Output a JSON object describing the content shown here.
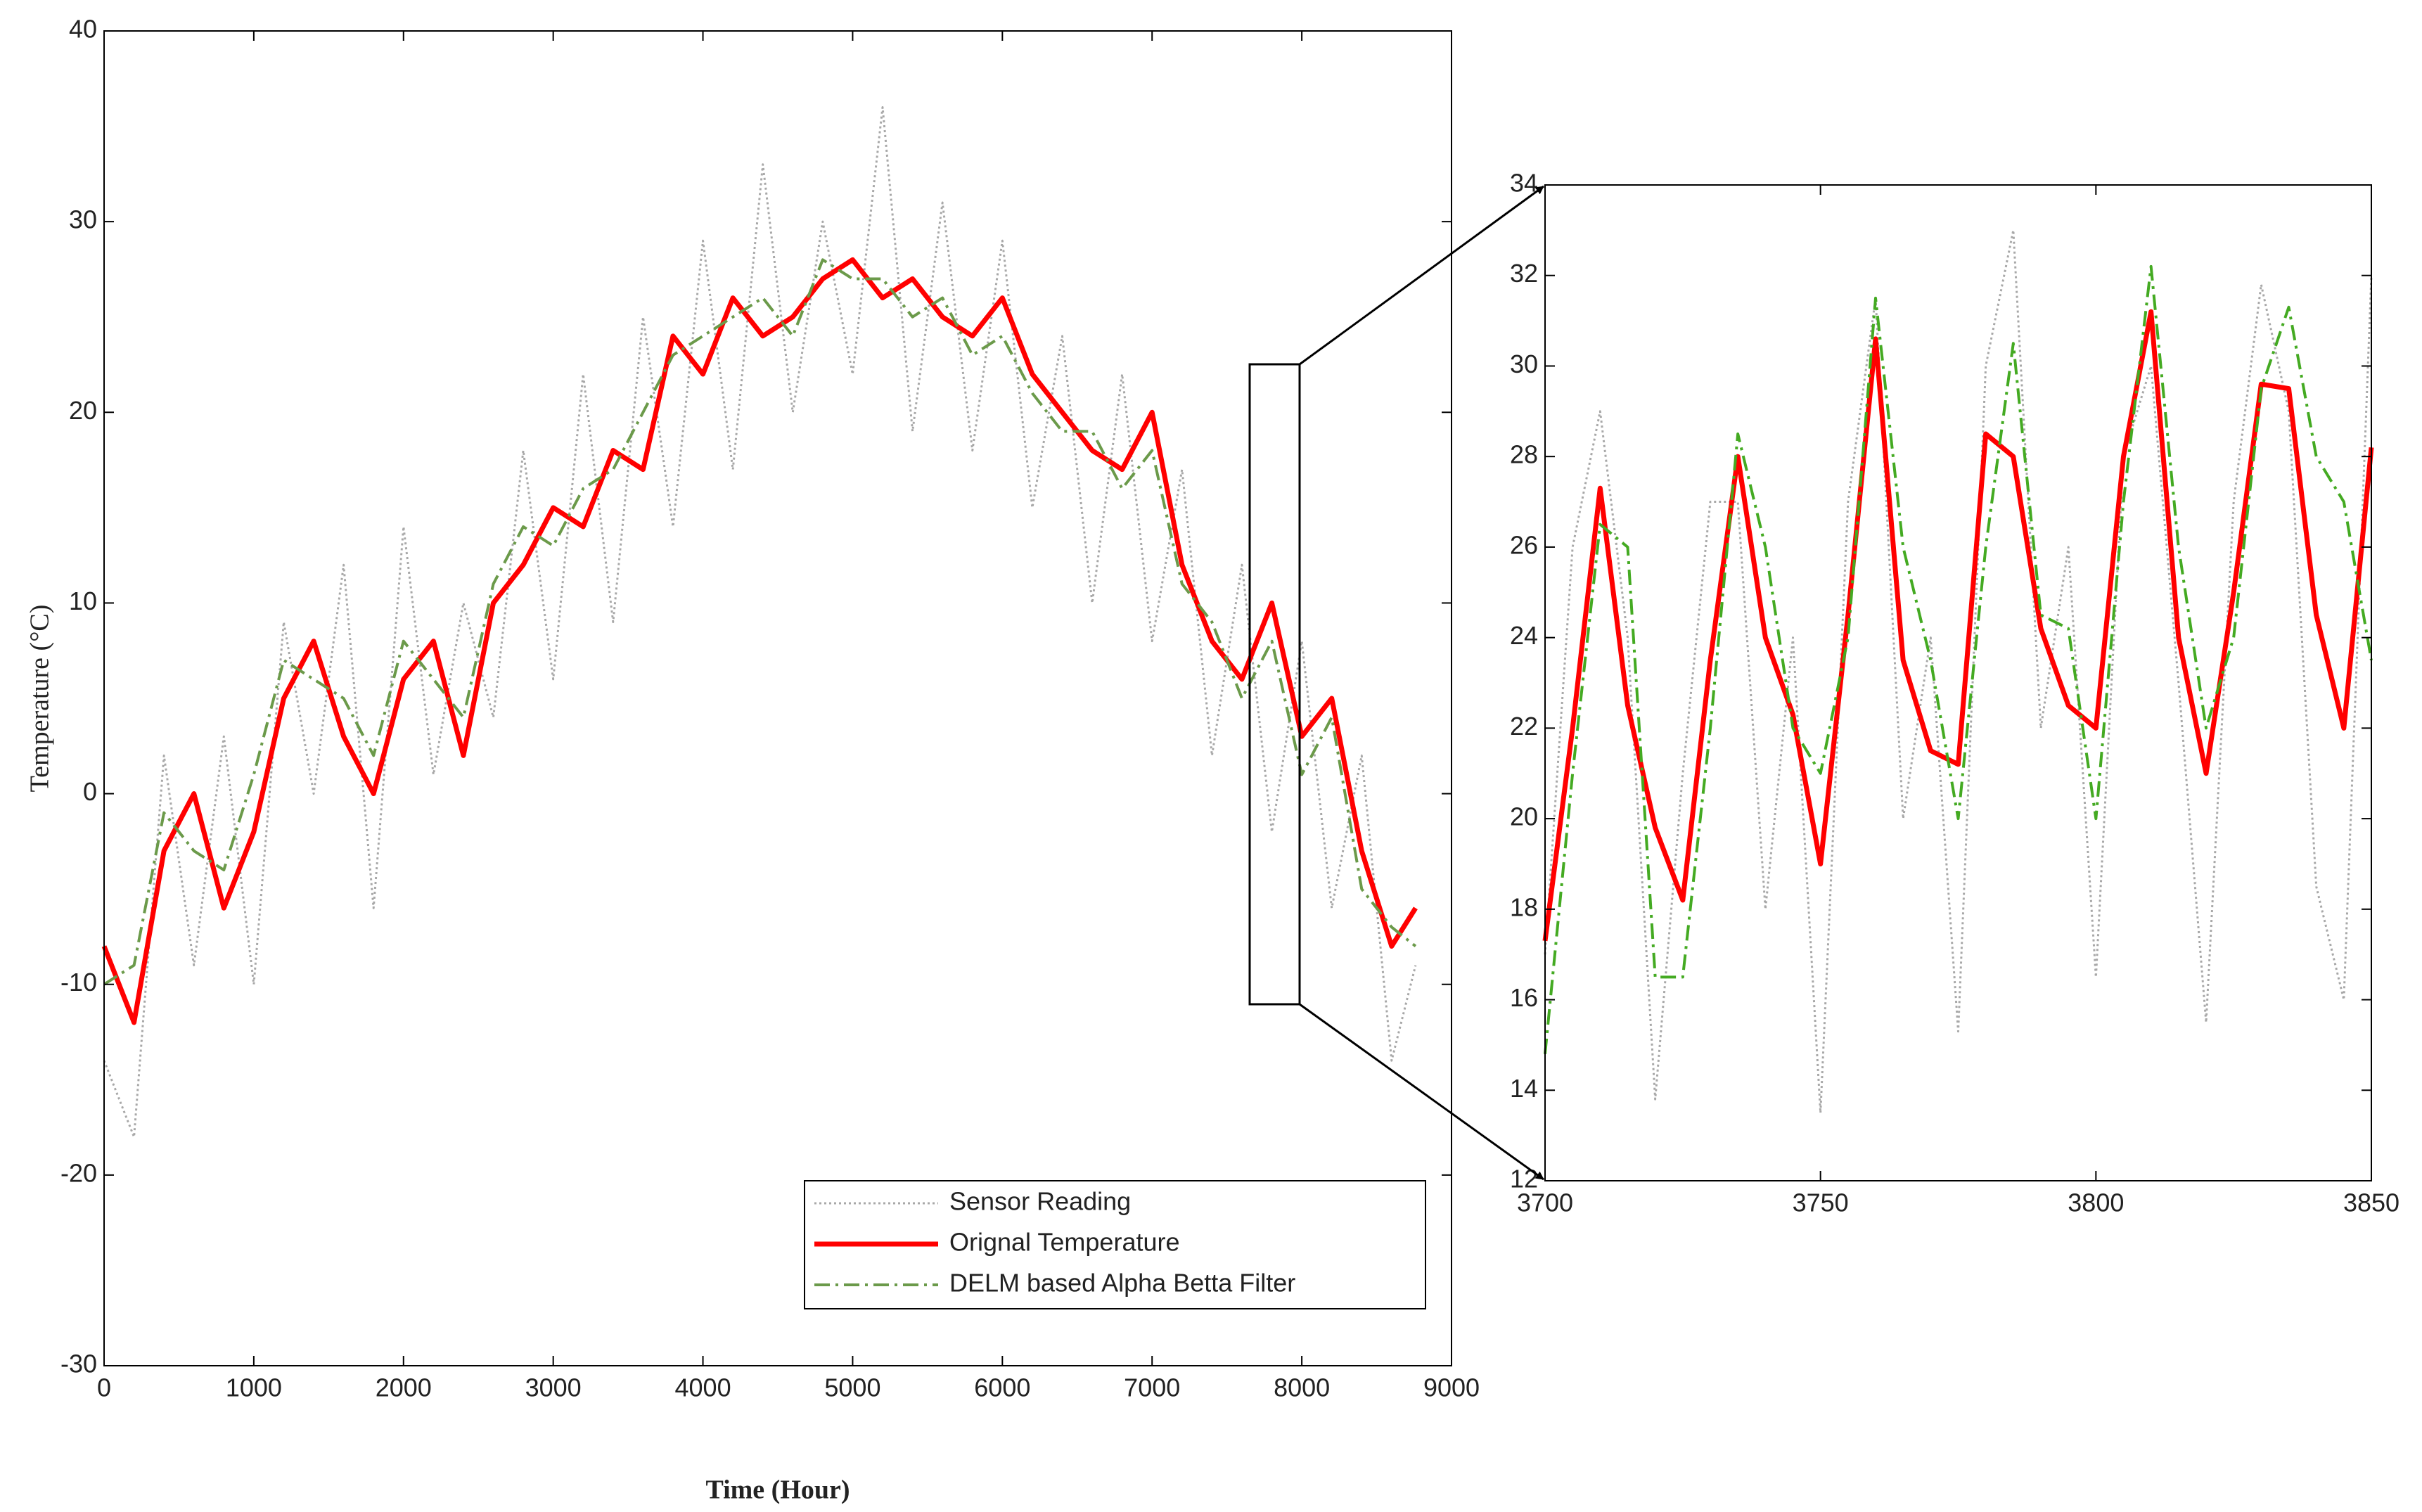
{
  "chart_data": [
    {
      "type": "line",
      "xlabel": "Time (Hour)",
      "ylabel": "Temperature (°C)",
      "x": [
        0,
        200,
        400,
        600,
        800,
        1000,
        1200,
        1400,
        1600,
        1800,
        2000,
        2200,
        2400,
        2600,
        2800,
        3000,
        3200,
        3400,
        3600,
        3800,
        4000,
        4200,
        4400,
        4600,
        4800,
        5000,
        5200,
        5400,
        5600,
        5800,
        6000,
        6200,
        6400,
        6600,
        6800,
        7000,
        7200,
        7400,
        7600,
        7800,
        8000,
        8200,
        8400,
        8600,
        8760
      ],
      "series": [
        {
          "name": "Sensor Reading",
          "color": "#a8a8a8",
          "values": [
            -14,
            -18,
            2,
            -9,
            3,
            -10,
            9,
            0,
            12,
            -6,
            14,
            1,
            10,
            4,
            18,
            6,
            22,
            9,
            25,
            14,
            29,
            17,
            33,
            20,
            30,
            22,
            36,
            19,
            31,
            18,
            29,
            15,
            24,
            10,
            22,
            8,
            17,
            2,
            12,
            -2,
            8,
            -6,
            2,
            -14,
            -9
          ]
        },
        {
          "name": "Orignal Temperature",
          "color": "#ff0000",
          "values": [
            -8,
            -12,
            -3,
            0,
            -6,
            -2,
            5,
            8,
            3,
            0,
            6,
            8,
            2,
            10,
            12,
            15,
            14,
            18,
            17,
            24,
            22,
            26,
            24,
            25,
            27,
            28,
            26,
            27,
            25,
            24,
            26,
            22,
            20,
            18,
            17,
            20,
            12,
            8,
            6,
            10,
            3,
            5,
            -3,
            -8,
            -6
          ]
        },
        {
          "name": "DELM based Alpha Betta Filter",
          "color": "#6b9a4a",
          "values": [
            -10,
            -9,
            -1,
            -3,
            -4,
            1,
            7,
            6,
            5,
            2,
            8,
            6,
            4,
            11,
            14,
            13,
            16,
            17,
            20,
            23,
            24,
            25,
            26,
            24,
            28,
            27,
            27,
            25,
            26,
            23,
            24,
            21,
            19,
            19,
            16,
            18,
            11,
            9,
            5,
            8,
            1,
            4,
            -5,
            -7,
            -8
          ]
        }
      ],
      "xlim": [
        0,
        9000
      ],
      "xticks": [
        0,
        1000,
        2000,
        3000,
        4000,
        5000,
        6000,
        7000,
        8000,
        9000
      ],
      "ylim": [
        -30,
        40
      ],
      "yticks": [
        -30,
        -20,
        -10,
        0,
        10,
        20,
        30,
        40
      ],
      "legend": "lower right"
    },
    {
      "type": "line",
      "x": [
        3700,
        3705,
        3710,
        3715,
        3720,
        3725,
        3730,
        3735,
        3740,
        3745,
        3750,
        3755,
        3760,
        3765,
        3770,
        3775,
        3780,
        3785,
        3790,
        3795,
        3800,
        3805,
        3810,
        3815,
        3820,
        3825,
        3830,
        3835,
        3840,
        3845,
        3850
      ],
      "series": [
        {
          "color": "#a8a8a8",
          "values": [
            17,
            26,
            29,
            24,
            13.8,
            21,
            27,
            27,
            18,
            24,
            13.5,
            27,
            31.5,
            20,
            24,
            15.3,
            30,
            33,
            22,
            26,
            16.5,
            28,
            30,
            23,
            15.5,
            27,
            31.8,
            29,
            18.5,
            16,
            32
          ]
        },
        {
          "color": "#ff0000",
          "values": [
            17.3,
            22,
            27.3,
            22.5,
            19.8,
            18.2,
            23.5,
            28,
            24,
            22.3,
            19,
            24.5,
            30.6,
            23.5,
            21.5,
            21.2,
            28.5,
            28,
            24.2,
            22.5,
            22,
            28,
            31.2,
            24,
            21,
            25,
            29.6,
            29.5,
            24.5,
            22,
            28.2
          ]
        },
        {
          "color": "#44aa22",
          "values": [
            14.8,
            21,
            26.5,
            26,
            16.5,
            16.5,
            22,
            28.5,
            26,
            22,
            21,
            24,
            31.5,
            26,
            23.5,
            20,
            26,
            30.5,
            24.5,
            24.2,
            20,
            27,
            32.2,
            26,
            22,
            24,
            29.5,
            31.3,
            28,
            27,
            23.5
          ]
        }
      ],
      "xlim": [
        3700,
        3850
      ],
      "xticks": [
        3700,
        3750,
        3800,
        3850
      ],
      "ylim": [
        12,
        34
      ],
      "yticks": [
        12,
        14,
        16,
        18,
        20,
        22,
        24,
        26,
        28,
        30,
        32,
        34
      ]
    }
  ]
}
